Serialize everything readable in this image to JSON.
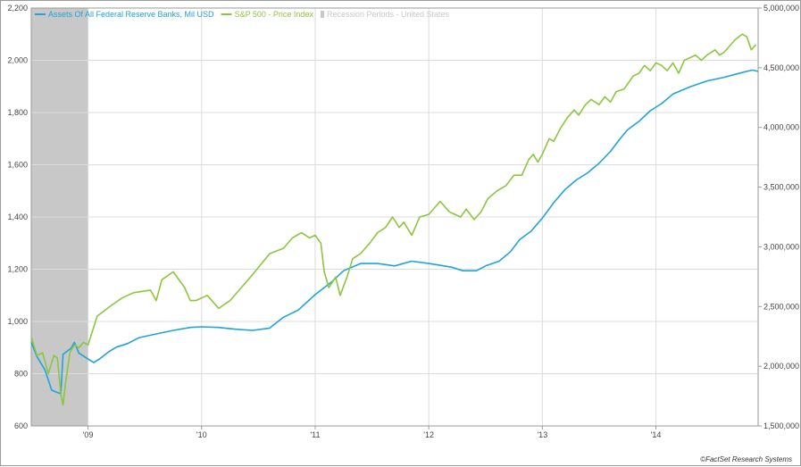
{
  "chart_data": {
    "type": "line",
    "legend": {
      "placement": "top-left",
      "entries": [
        {
          "label": "Assets Of All Federal Reserve Banks, Mil USD",
          "color": "#1ea3db"
        },
        {
          "label": "S&P 500 - Price Index",
          "color": "#8cc63f"
        },
        {
          "label": "Recession Periods - United States",
          "color": "#c8c8c8"
        }
      ]
    },
    "x_ticks": [
      {
        "label": "'09",
        "date": 2009.0
      },
      {
        "label": "'10",
        "date": 2010.0
      },
      {
        "label": "'11",
        "date": 2011.0
      },
      {
        "label": "'12",
        "date": 2012.0
      },
      {
        "label": "'13",
        "date": 2013.0
      },
      {
        "label": "'14",
        "date": 2014.0
      }
    ],
    "xlim": [
      2008.5,
      2014.9
    ],
    "left_axis": {
      "ylim": [
        600,
        2200
      ],
      "ticks": [
        "600",
        "800",
        "1,000",
        "1,200",
        "1,400",
        "1,600",
        "1,800",
        "2,000",
        "2,200"
      ],
      "values": [
        600,
        800,
        1000,
        1200,
        1400,
        1600,
        1800,
        2000,
        2200
      ]
    },
    "right_axis": {
      "ylim": [
        1500000,
        5000000
      ],
      "ticks": [
        "1,500,000",
        "2,000,000",
        "2,500,000",
        "3,000,000",
        "3,500,000",
        "4,000,000",
        "4,500,000",
        "5,000,000"
      ],
      "values": [
        1500000,
        2000000,
        2500000,
        3000000,
        3500000,
        4000000,
        4500000,
        5000000
      ]
    },
    "grid": true,
    "recession": {
      "start": 2008.5,
      "end": 2009.0
    },
    "series": [
      {
        "name": "Assets Of All Federal Reserve Banks, Mil USD",
        "axis": "right",
        "color": "#1ea3db",
        "points": [
          [
            2008.5,
            2200000
          ],
          [
            2008.55,
            2080000
          ],
          [
            2008.62,
            1970000
          ],
          [
            2008.68,
            1800000
          ],
          [
            2008.73,
            1780000
          ],
          [
            2008.76,
            1770000
          ],
          [
            2008.78,
            2100000
          ],
          [
            2008.85,
            2150000
          ],
          [
            2008.88,
            2200000
          ],
          [
            2008.92,
            2110000
          ],
          [
            2009.0,
            2060000
          ],
          [
            2009.05,
            2030000
          ],
          [
            2009.1,
            2060000
          ],
          [
            2009.18,
            2120000
          ],
          [
            2009.25,
            2160000
          ],
          [
            2009.35,
            2190000
          ],
          [
            2009.45,
            2240000
          ],
          [
            2009.6,
            2270000
          ],
          [
            2009.75,
            2300000
          ],
          [
            2009.9,
            2325000
          ],
          [
            2010.0,
            2330000
          ],
          [
            2010.15,
            2325000
          ],
          [
            2010.3,
            2310000
          ],
          [
            2010.45,
            2300000
          ],
          [
            2010.6,
            2320000
          ],
          [
            2010.72,
            2410000
          ],
          [
            2010.85,
            2470000
          ],
          [
            2011.0,
            2600000
          ],
          [
            2011.15,
            2710000
          ],
          [
            2011.25,
            2800000
          ],
          [
            2011.4,
            2860000
          ],
          [
            2011.55,
            2860000
          ],
          [
            2011.7,
            2840000
          ],
          [
            2011.85,
            2880000
          ],
          [
            2012.0,
            2860000
          ],
          [
            2012.2,
            2830000
          ],
          [
            2012.3,
            2800000
          ],
          [
            2012.42,
            2800000
          ],
          [
            2012.5,
            2840000
          ],
          [
            2012.62,
            2880000
          ],
          [
            2012.72,
            2960000
          ],
          [
            2012.8,
            3060000
          ],
          [
            2012.9,
            3130000
          ],
          [
            2013.0,
            3240000
          ],
          [
            2013.1,
            3370000
          ],
          [
            2013.2,
            3480000
          ],
          [
            2013.3,
            3560000
          ],
          [
            2013.4,
            3620000
          ],
          [
            2013.5,
            3700000
          ],
          [
            2013.6,
            3800000
          ],
          [
            2013.68,
            3900000
          ],
          [
            2013.75,
            3980000
          ],
          [
            2013.85,
            4050000
          ],
          [
            2013.95,
            4140000
          ],
          [
            2014.05,
            4200000
          ],
          [
            2014.15,
            4280000
          ],
          [
            2014.3,
            4340000
          ],
          [
            2014.45,
            4390000
          ],
          [
            2014.6,
            4420000
          ],
          [
            2014.7,
            4445000
          ],
          [
            2014.8,
            4470000
          ],
          [
            2014.85,
            4480000
          ],
          [
            2014.9,
            4470000
          ]
        ]
      },
      {
        "name": "S&P 500 - Price Index",
        "axis": "left",
        "color": "#8cc63f",
        "points": [
          [
            2008.5,
            940
          ],
          [
            2008.55,
            870
          ],
          [
            2008.6,
            880
          ],
          [
            2008.65,
            800
          ],
          [
            2008.7,
            870
          ],
          [
            2008.73,
            860
          ],
          [
            2008.76,
            720
          ],
          [
            2008.78,
            680
          ],
          [
            2008.8,
            760
          ],
          [
            2008.84,
            880
          ],
          [
            2008.88,
            910
          ],
          [
            2008.92,
            900
          ],
          [
            2008.96,
            920
          ],
          [
            2009.0,
            910
          ],
          [
            2009.08,
            1020
          ],
          [
            2009.2,
            1060
          ],
          [
            2009.3,
            1090
          ],
          [
            2009.4,
            1110
          ],
          [
            2009.55,
            1120
          ],
          [
            2009.6,
            1080
          ],
          [
            2009.65,
            1160
          ],
          [
            2009.75,
            1190
          ],
          [
            2009.85,
            1130
          ],
          [
            2009.9,
            1080
          ],
          [
            2009.95,
            1080
          ],
          [
            2010.05,
            1100
          ],
          [
            2010.15,
            1050
          ],
          [
            2010.25,
            1080
          ],
          [
            2010.35,
            1130
          ],
          [
            2010.45,
            1180
          ],
          [
            2010.6,
            1260
          ],
          [
            2010.72,
            1280
          ],
          [
            2010.8,
            1320
          ],
          [
            2010.88,
            1340
          ],
          [
            2010.95,
            1320
          ],
          [
            2011.0,
            1330
          ],
          [
            2011.05,
            1300
          ],
          [
            2011.08,
            1190
          ],
          [
            2011.12,
            1130
          ],
          [
            2011.18,
            1170
          ],
          [
            2011.22,
            1100
          ],
          [
            2011.28,
            1170
          ],
          [
            2011.33,
            1240
          ],
          [
            2011.4,
            1260
          ],
          [
            2011.48,
            1300
          ],
          [
            2011.55,
            1340
          ],
          [
            2011.62,
            1360
          ],
          [
            2011.68,
            1400
          ],
          [
            2011.74,
            1360
          ],
          [
            2011.78,
            1380
          ],
          [
            2011.85,
            1330
          ],
          [
            2011.92,
            1400
          ],
          [
            2012.0,
            1410
          ],
          [
            2012.1,
            1460
          ],
          [
            2012.18,
            1420
          ],
          [
            2012.28,
            1400
          ],
          [
            2012.33,
            1430
          ],
          [
            2012.4,
            1390
          ],
          [
            2012.46,
            1420
          ],
          [
            2012.52,
            1470
          ],
          [
            2012.6,
            1500
          ],
          [
            2012.68,
            1520
          ],
          [
            2012.75,
            1560
          ],
          [
            2012.82,
            1560
          ],
          [
            2012.88,
            1620
          ],
          [
            2012.92,
            1640
          ],
          [
            2012.96,
            1610
          ],
          [
            2013.0,
            1640
          ],
          [
            2013.06,
            1700
          ],
          [
            2013.1,
            1690
          ],
          [
            2013.16,
            1740
          ],
          [
            2013.22,
            1780
          ],
          [
            2013.28,
            1810
          ],
          [
            2013.32,
            1790
          ],
          [
            2013.38,
            1830
          ],
          [
            2013.43,
            1850
          ],
          [
            2013.5,
            1830
          ],
          [
            2013.55,
            1860
          ],
          [
            2013.6,
            1840
          ],
          [
            2013.65,
            1880
          ],
          [
            2013.72,
            1890
          ],
          [
            2013.8,
            1940
          ],
          [
            2013.85,
            1950
          ],
          [
            2013.9,
            1980
          ],
          [
            2013.95,
            1960
          ],
          [
            2014.0,
            1990
          ],
          [
            2014.05,
            1980
          ],
          [
            2014.1,
            1960
          ],
          [
            2014.15,
            1990
          ],
          [
            2014.2,
            1950
          ],
          [
            2014.25,
            2000
          ],
          [
            2014.3,
            2010
          ],
          [
            2014.35,
            2020
          ],
          [
            2014.4,
            2000
          ],
          [
            2014.45,
            2020
          ],
          [
            2014.52,
            2040
          ],
          [
            2014.56,
            2020
          ],
          [
            2014.6,
            2030
          ],
          [
            2014.66,
            2060
          ],
          [
            2014.7,
            2080
          ],
          [
            2014.76,
            2100
          ],
          [
            2014.8,
            2090
          ],
          [
            2014.84,
            2040
          ],
          [
            2014.88,
            2060
          ]
        ]
      }
    ]
  },
  "credit": "©FactSet Research Systems"
}
